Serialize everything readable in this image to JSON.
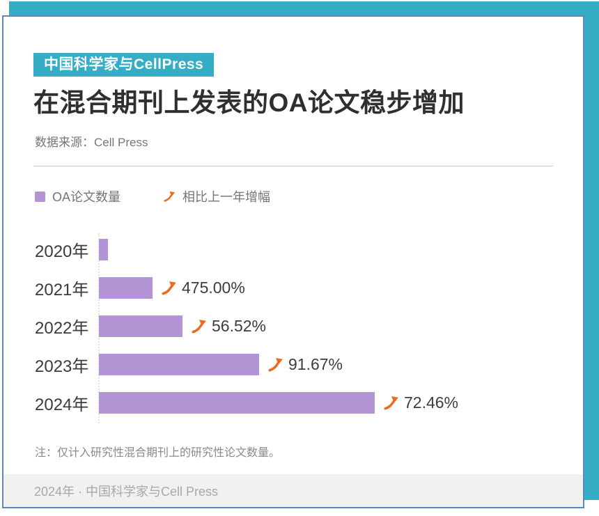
{
  "header": {
    "badge": "中国科学家与CellPress",
    "title": "在混合期刊上发表的OA论文稳步增加",
    "source": "数据来源：Cell Press"
  },
  "legend": {
    "bars_label": "OA论文数量",
    "growth_label": "相比上一年增幅"
  },
  "chart_data": {
    "type": "bar",
    "orientation": "horizontal",
    "title": "在混合期刊上发表的OA论文稳步增加",
    "series_name": "OA论文数量",
    "categories": [
      "2020年",
      "2021年",
      "2022年",
      "2023年",
      "2024年"
    ],
    "values": [
      4,
      23,
      36,
      69,
      119
    ],
    "growth_labels": [
      "",
      "475.00%",
      "56.52%",
      "91.67%",
      "72.46%"
    ],
    "legend_position": "top",
    "grid": false
  },
  "note": "注：仅计入研究性混合期刊上的研究性论文数量。",
  "footer": {
    "text": "2024年 · 中国科学家与Cell Press"
  },
  "colors": {
    "teal": "#35adc4",
    "border_blue": "#5b87c4",
    "bar_purple": "#b394d4",
    "arrow_orange": "#ed6b21"
  }
}
